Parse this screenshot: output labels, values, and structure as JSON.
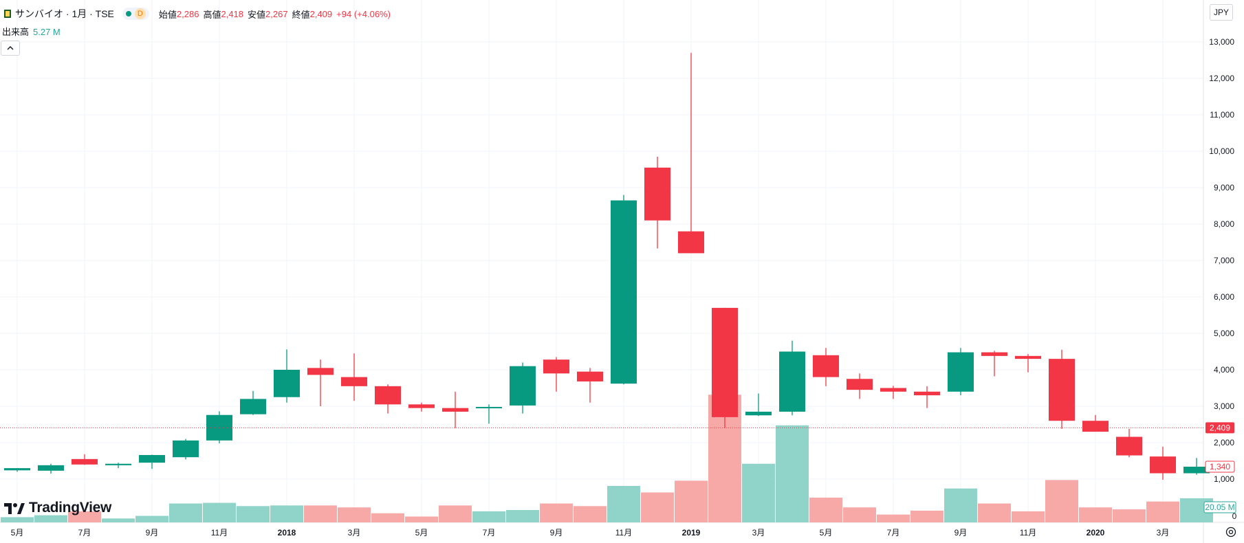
{
  "header": {
    "title": "サンバイオ · 1月 · TSE",
    "interval_badge": "D",
    "open_label": "始値",
    "open_value": "2,286",
    "high_label": "高値",
    "high_value": "2,418",
    "low_label": "安値",
    "low_value": "2,267",
    "close_label": "終値",
    "close_value": "2,409",
    "change": "+94 (+4.06%)"
  },
  "volume_legend": {
    "label": "出来高",
    "value": "5.27 M"
  },
  "currency_button": "JPY",
  "collapse_icon": "chevron-up-icon",
  "logo_text": "TradingView",
  "settings_icon": "gear-icon",
  "price_badges": {
    "last": "2,409",
    "secondary": "1,340",
    "volume": "20.05 M"
  },
  "colors": {
    "up": "#089981",
    "down": "#f23645",
    "vol_up": "#8fd3c9",
    "vol_down": "#f7a9a7"
  },
  "chart_data": {
    "type": "candlestick",
    "y_ticks": [
      "1,000",
      "2,000",
      "3,000",
      "4,000",
      "5,000",
      "6,000",
      "7,000",
      "8,000",
      "9,000",
      "10,000",
      "11,000",
      "12,000",
      "13,000"
    ],
    "ylim": [
      -100,
      13500
    ],
    "x_ticks": [
      "5月",
      "7月",
      "9月",
      "11月",
      "2018",
      "3月",
      "5月",
      "7月",
      "9月",
      "11月",
      "2019",
      "3月",
      "5月",
      "7月",
      "9月",
      "11月",
      "2020",
      "3月"
    ],
    "last_price": 2409,
    "candles": [
      {
        "o": 1240,
        "h": 1300,
        "l": 1200,
        "c": 1300,
        "v": 0.8
      },
      {
        "o": 1230,
        "h": 1420,
        "l": 1150,
        "c": 1380,
        "v": 1.1
      },
      {
        "o": 1550,
        "h": 1680,
        "l": 1390,
        "c": 1400,
        "v": 1.7
      },
      {
        "o": 1380,
        "h": 1450,
        "l": 1300,
        "c": 1420,
        "v": 0.6
      },
      {
        "o": 1450,
        "h": 1670,
        "l": 1280,
        "c": 1660,
        "v": 1.0
      },
      {
        "o": 1600,
        "h": 2100,
        "l": 1540,
        "c": 2060,
        "v": 2.9
      },
      {
        "o": 2060,
        "h": 2860,
        "l": 1980,
        "c": 2760,
        "v": 3.0
      },
      {
        "o": 2780,
        "h": 3420,
        "l": 2760,
        "c": 3200,
        "v": 2.5
      },
      {
        "o": 3250,
        "h": 4560,
        "l": 3100,
        "c": 4000,
        "v": 2.6
      },
      {
        "o": 4050,
        "h": 4280,
        "l": 3000,
        "c": 3860,
        "v": 2.6
      },
      {
        "o": 3800,
        "h": 4450,
        "l": 3150,
        "c": 3550,
        "v": 2.3
      },
      {
        "o": 3550,
        "h": 3600,
        "l": 2800,
        "c": 3050,
        "v": 1.4
      },
      {
        "o": 3050,
        "h": 3100,
        "l": 2850,
        "c": 2950,
        "v": 0.9
      },
      {
        "o": 2950,
        "h": 3400,
        "l": 2400,
        "c": 2850,
        "v": 2.6
      },
      {
        "o": 2950,
        "h": 3050,
        "l": 2520,
        "c": 2980,
        "v": 1.7
      },
      {
        "o": 3020,
        "h": 4200,
        "l": 2800,
        "c": 4100,
        "v": 1.9
      },
      {
        "o": 4280,
        "h": 4350,
        "l": 3400,
        "c": 3900,
        "v": 2.9
      },
      {
        "o": 3950,
        "h": 4050,
        "l": 3100,
        "c": 3680,
        "v": 2.5
      },
      {
        "o": 3620,
        "h": 8800,
        "l": 3600,
        "c": 8650,
        "v": 5.6
      },
      {
        "o": 9550,
        "h": 9850,
        "l": 7330,
        "c": 8100,
        "v": 4.6
      },
      {
        "o": 7800,
        "h": 12700,
        "l": 7200,
        "c": 7200,
        "v": 6.4
      },
      {
        "o": 5700,
        "h": 5700,
        "l": 2400,
        "c": 2700,
        "v": 19.6
      },
      {
        "o": 2750,
        "h": 3350,
        "l": 2730,
        "c": 2850,
        "v": 9.0
      },
      {
        "o": 2850,
        "h": 4800,
        "l": 2750,
        "c": 4500,
        "v": 14.9
      },
      {
        "o": 4400,
        "h": 4600,
        "l": 3550,
        "c": 3800,
        "v": 3.8
      },
      {
        "o": 3750,
        "h": 3900,
        "l": 3200,
        "c": 3450,
        "v": 2.3
      },
      {
        "o": 3500,
        "h": 3560,
        "l": 3200,
        "c": 3400,
        "v": 1.2
      },
      {
        "o": 3400,
        "h": 3550,
        "l": 2950,
        "c": 3300,
        "v": 1.8
      },
      {
        "o": 3400,
        "h": 4600,
        "l": 3300,
        "c": 4480,
        "v": 5.2
      },
      {
        "o": 4480,
        "h": 4520,
        "l": 3820,
        "c": 4380,
        "v": 2.9
      },
      {
        "o": 4380,
        "h": 4430,
        "l": 3930,
        "c": 4300,
        "v": 1.7
      },
      {
        "o": 4300,
        "h": 4550,
        "l": 2380,
        "c": 2600,
        "v": 6.5
      },
      {
        "o": 2600,
        "h": 2760,
        "l": 2300,
        "c": 2300,
        "v": 2.3
      },
      {
        "o": 2160,
        "h": 2380,
        "l": 1600,
        "c": 1650,
        "v": 2.0
      },
      {
        "o": 1620,
        "h": 1890,
        "l": 980,
        "c": 1160,
        "v": 3.2
      },
      {
        "o": 1160,
        "h": 1580,
        "l": 1120,
        "c": 1340,
        "v": 3.7
      }
    ]
  }
}
